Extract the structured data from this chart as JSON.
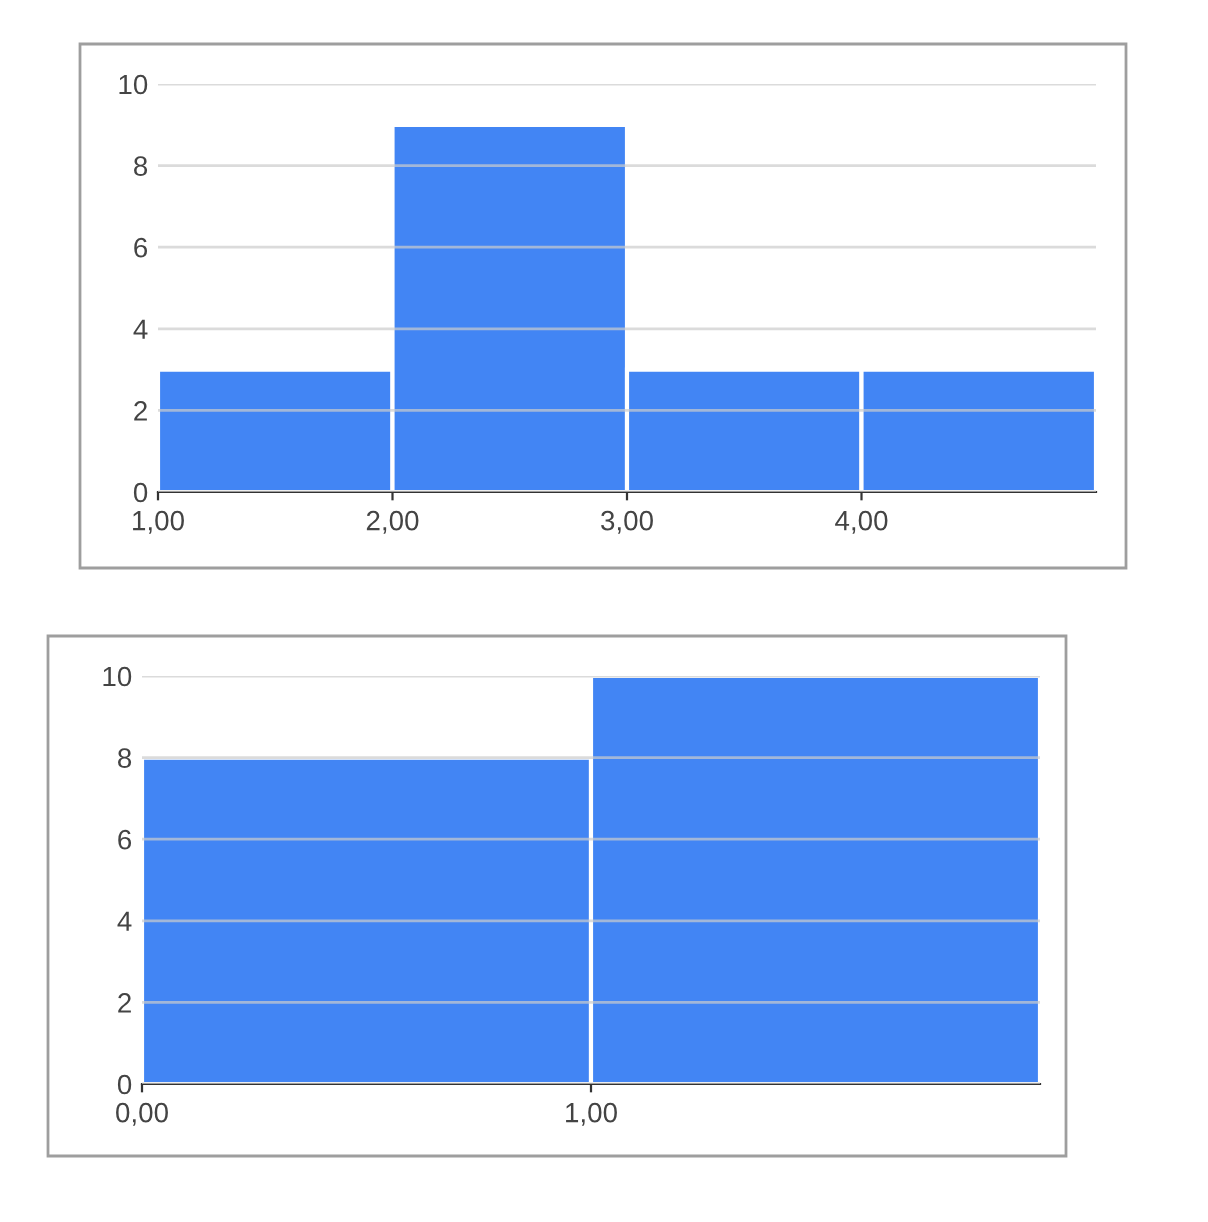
{
  "chart_data": [
    {
      "type": "histogram",
      "bins": [
        1,
        2,
        3,
        4,
        5
      ],
      "values": [
        3,
        9,
        3,
        3
      ],
      "color": "#4285f4",
      "xlim": [
        1,
        5
      ],
      "xticks": [
        {
          "value": 1,
          "label": "1,00"
        },
        {
          "value": 2,
          "label": "2,00"
        },
        {
          "value": 3,
          "label": "3,00"
        },
        {
          "value": 4,
          "label": "4,00"
        }
      ],
      "ylim": [
        0,
        10
      ],
      "yticks": [
        0,
        2,
        4,
        6,
        8,
        10
      ],
      "grid": "y"
    },
    {
      "type": "histogram",
      "bins": [
        0,
        1,
        2
      ],
      "values": [
        8,
        10
      ],
      "color": "#4285f4",
      "xlim": [
        0,
        2
      ],
      "xticks": [
        {
          "value": 0,
          "label": "0,00"
        },
        {
          "value": 1,
          "label": "1,00"
        }
      ],
      "ylim": [
        0,
        10
      ],
      "yticks": [
        0,
        2,
        4,
        6,
        8,
        10
      ],
      "grid": "y"
    }
  ]
}
